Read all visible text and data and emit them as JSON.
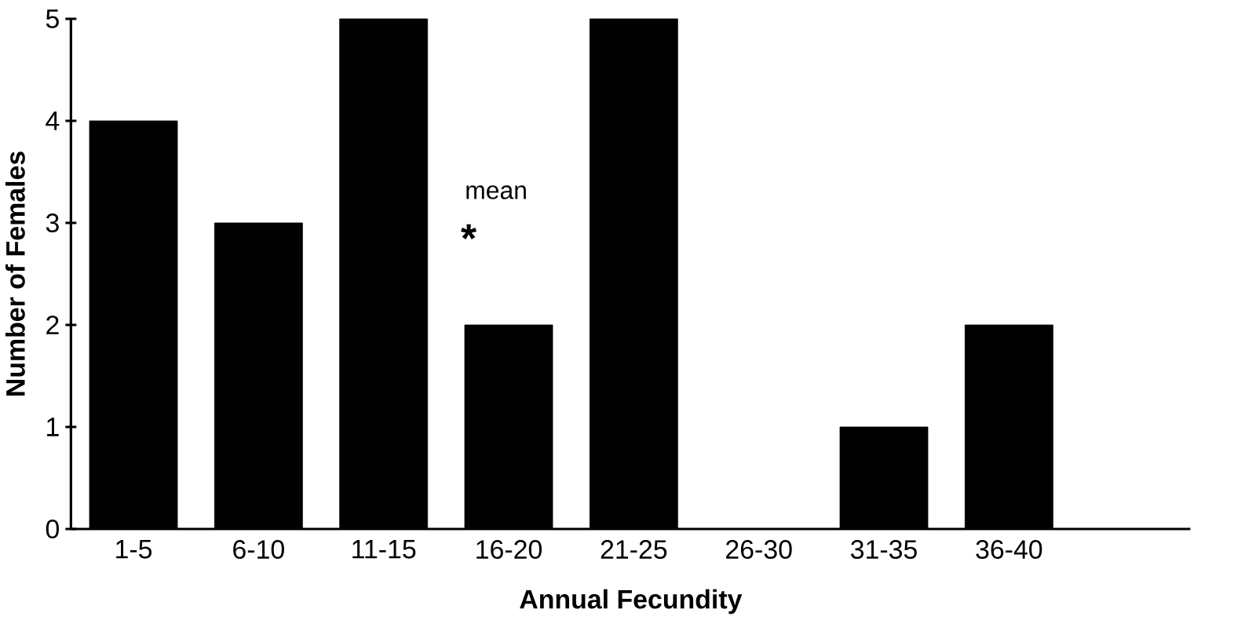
{
  "chart_data": {
    "type": "bar",
    "categories": [
      "1-5",
      "6-10",
      "11-15",
      "16-20",
      "21-25",
      "26-30",
      "31-35",
      "36-40"
    ],
    "values": [
      4,
      3,
      5,
      2,
      5,
      0,
      1,
      2
    ],
    "color": "#000000",
    "xlabel": "Annual Fecundity",
    "ylabel": "Number of Females",
    "ylim": [
      0,
      5
    ],
    "yticks": [
      0,
      1,
      2,
      3,
      4,
      5
    ],
    "annotations": [
      "mean",
      "*"
    ]
  }
}
